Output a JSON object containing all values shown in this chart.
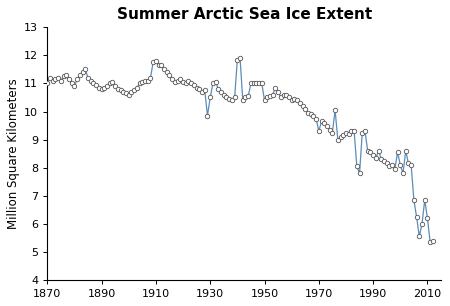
{
  "title": "Summer Arctic Sea Ice Extent",
  "ylabel": "Million Square Kilometers",
  "xlim": [
    1870,
    2015
  ],
  "ylim": [
    4,
    13
  ],
  "xticks": [
    1870,
    1890,
    1910,
    1930,
    1950,
    1970,
    1990,
    2010
  ],
  "yticks": [
    4,
    5,
    6,
    7,
    8,
    9,
    10,
    11,
    12,
    13
  ],
  "line_color": "#5b8db8",
  "years": [
    1870,
    1871,
    1872,
    1873,
    1874,
    1875,
    1876,
    1877,
    1878,
    1879,
    1880,
    1881,
    1882,
    1883,
    1884,
    1885,
    1886,
    1887,
    1888,
    1889,
    1890,
    1891,
    1892,
    1893,
    1894,
    1895,
    1896,
    1897,
    1898,
    1899,
    1900,
    1901,
    1902,
    1903,
    1904,
    1905,
    1906,
    1907,
    1908,
    1909,
    1910,
    1911,
    1912,
    1913,
    1914,
    1915,
    1916,
    1917,
    1918,
    1919,
    1920,
    1921,
    1922,
    1923,
    1924,
    1925,
    1926,
    1927,
    1928,
    1929,
    1930,
    1931,
    1932,
    1933,
    1934,
    1935,
    1936,
    1937,
    1938,
    1939,
    1940,
    1941,
    1942,
    1943,
    1944,
    1945,
    1946,
    1947,
    1948,
    1949,
    1950,
    1951,
    1952,
    1953,
    1954,
    1955,
    1956,
    1957,
    1958,
    1959,
    1960,
    1961,
    1962,
    1963,
    1964,
    1965,
    1966,
    1967,
    1968,
    1969,
    1970,
    1971,
    1972,
    1973,
    1974,
    1975,
    1976,
    1977,
    1978,
    1979,
    1980,
    1981,
    1982,
    1983,
    1984,
    1985,
    1986,
    1987,
    1988,
    1989,
    1990,
    1991,
    1992,
    1993,
    1994,
    1995,
    1996,
    1997,
    1998,
    1999,
    2000,
    2001,
    2002,
    2003,
    2004,
    2005,
    2006,
    2007,
    2008,
    2009,
    2010,
    2011,
    2012
  ],
  "values": [
    11.0,
    11.2,
    11.1,
    11.15,
    11.2,
    11.1,
    11.25,
    11.3,
    11.15,
    11.0,
    10.9,
    11.15,
    11.3,
    11.4,
    11.5,
    11.2,
    11.1,
    11.0,
    10.95,
    10.85,
    10.8,
    10.85,
    10.9,
    11.0,
    11.05,
    10.9,
    10.8,
    10.75,
    10.7,
    10.65,
    10.6,
    10.7,
    10.75,
    10.85,
    11.0,
    11.05,
    11.1,
    11.1,
    11.2,
    11.75,
    11.8,
    11.65,
    11.65,
    11.5,
    11.4,
    11.3,
    11.15,
    11.05,
    11.1,
    11.15,
    11.05,
    11.0,
    11.1,
    11.0,
    10.95,
    10.85,
    10.8,
    10.7,
    10.75,
    9.85,
    10.5,
    11.0,
    11.05,
    10.8,
    10.7,
    10.6,
    10.5,
    10.45,
    10.4,
    10.5,
    11.85,
    11.9,
    10.4,
    10.5,
    10.55,
    11.0,
    11.0,
    11.0,
    11.0,
    11.0,
    10.4,
    10.5,
    10.55,
    10.6,
    10.85,
    10.7,
    10.5,
    10.6,
    10.6,
    10.5,
    10.4,
    10.45,
    10.4,
    10.3,
    10.2,
    10.1,
    9.95,
    9.9,
    9.85,
    9.75,
    9.3,
    9.65,
    9.6,
    9.5,
    9.35,
    9.25,
    10.05,
    9.0,
    9.1,
    9.15,
    9.25,
    9.2,
    9.3,
    9.3,
    8.05,
    7.8,
    9.25,
    9.3,
    8.6,
    8.55,
    8.45,
    8.35,
    8.6,
    8.3,
    8.25,
    8.15,
    8.05,
    8.1,
    7.95,
    8.55,
    8.1,
    7.8,
    8.6,
    8.15,
    8.1,
    6.85,
    6.25,
    5.55,
    6.0,
    6.85,
    6.2,
    5.35,
    5.4
  ]
}
